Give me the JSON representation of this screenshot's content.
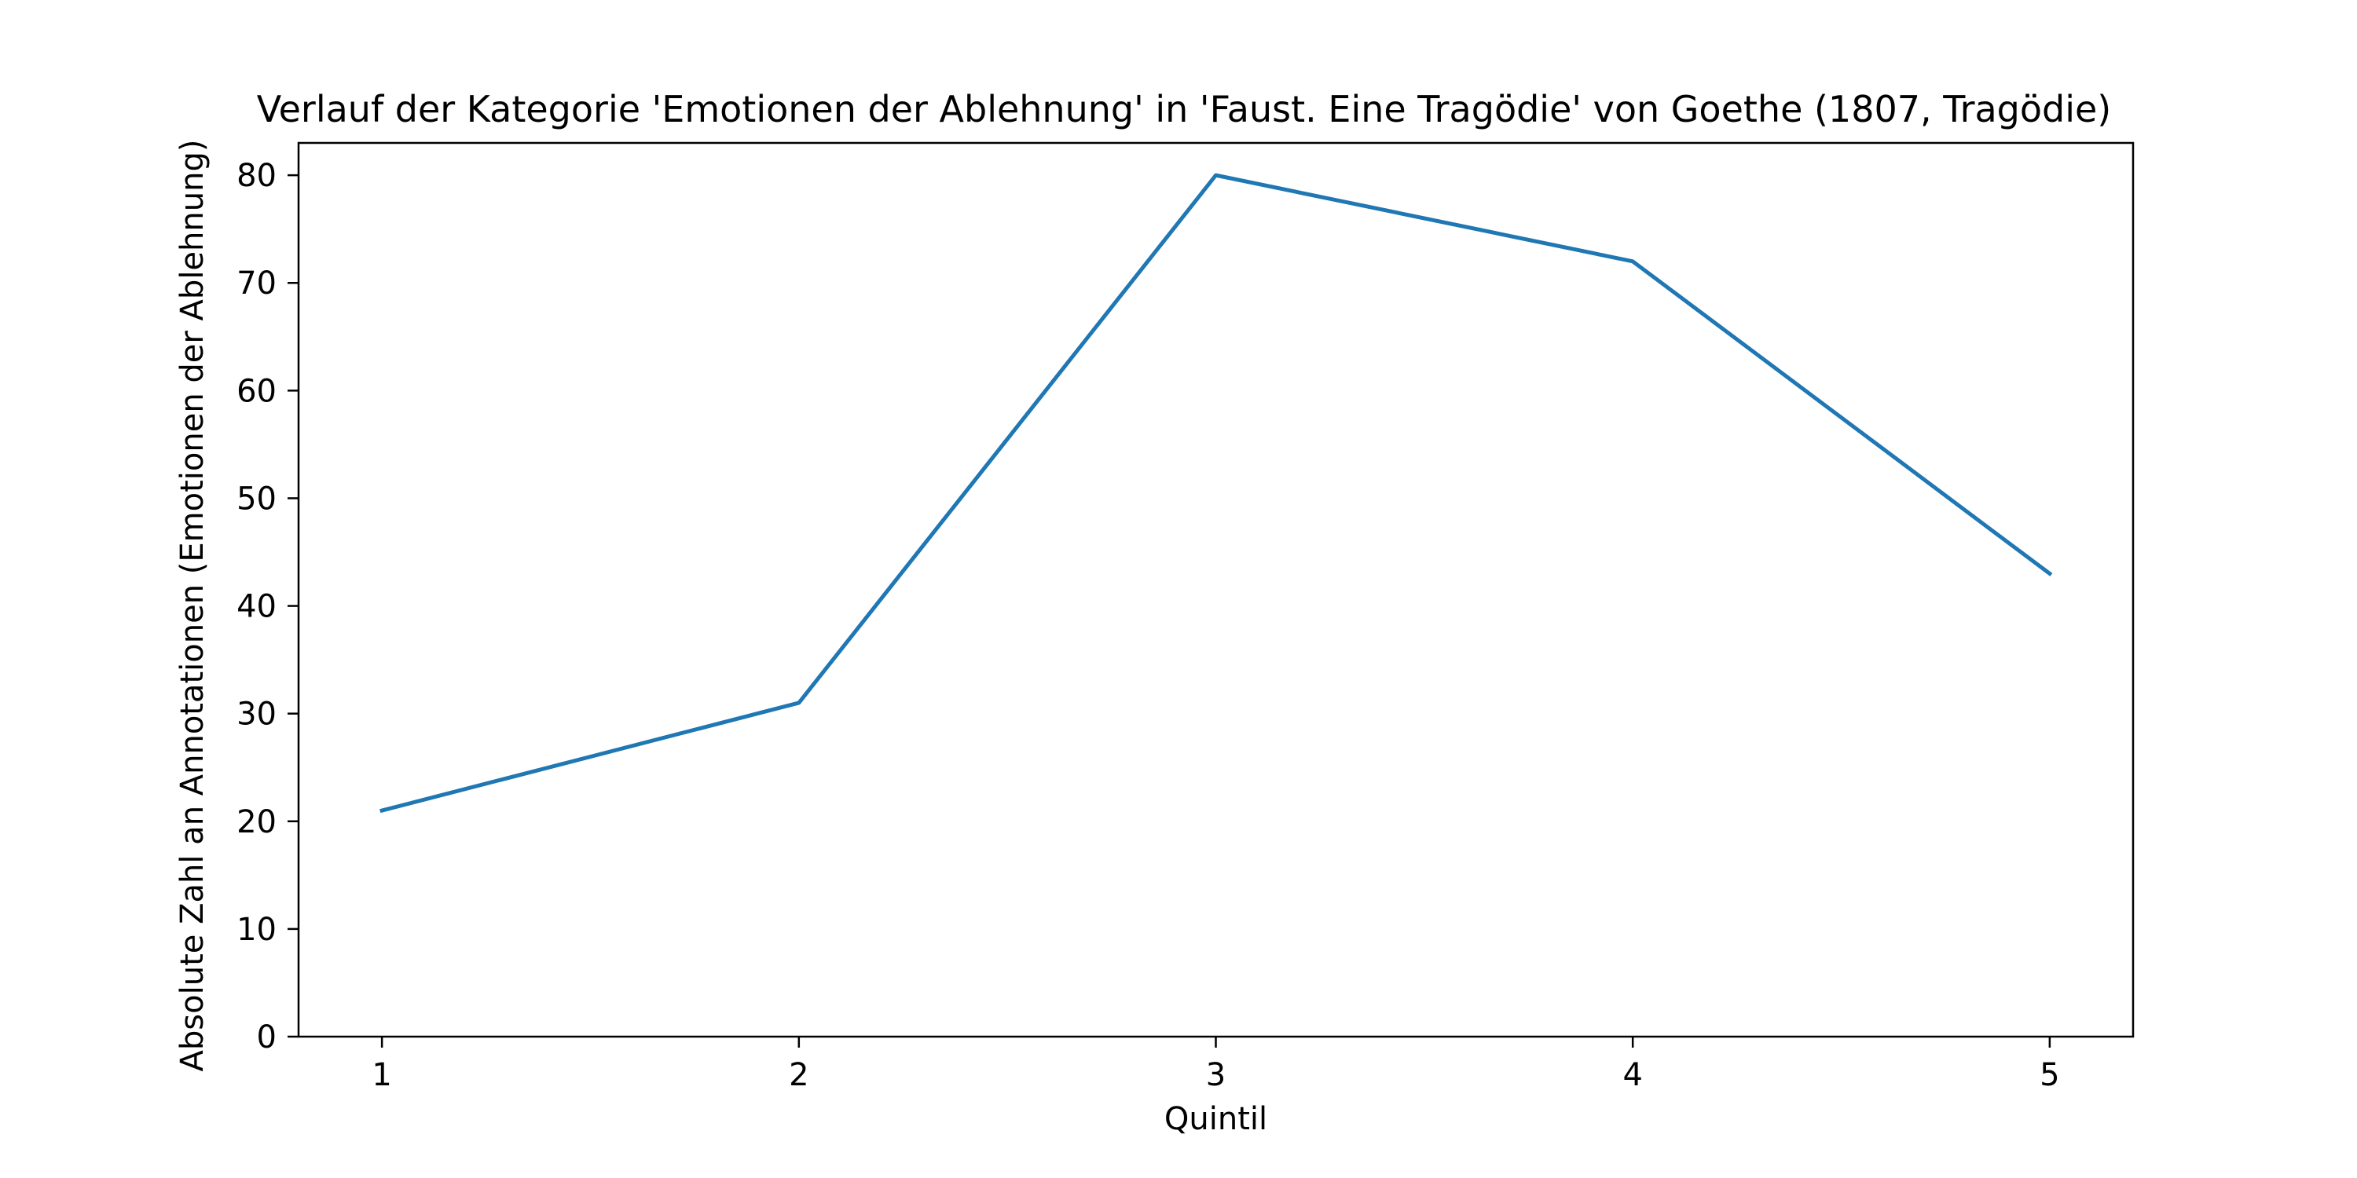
{
  "chart_data": {
    "type": "line",
    "title": "Verlauf der Kategorie 'Emotionen der Ablehnung' in 'Faust. Eine Tragödie' von Goethe (1807, Tragödie)",
    "xlabel": "Quintil",
    "ylabel": "Absolute Zahl an Annotationen (Emotionen der Ablehnung)",
    "x": [
      1,
      2,
      3,
      4,
      5
    ],
    "series": [
      {
        "values": [
          21,
          31,
          80,
          72,
          43
        ],
        "color": "#1f77b4"
      }
    ],
    "xticks": [
      "1",
      "2",
      "3",
      "4",
      "5"
    ],
    "yticks": [
      "0",
      "10",
      "20",
      "30",
      "40",
      "50",
      "60",
      "70",
      "80"
    ],
    "xlim": [
      0.8,
      5.2
    ],
    "ylim": [
      0,
      83
    ],
    "grid": false,
    "legend": false
  }
}
